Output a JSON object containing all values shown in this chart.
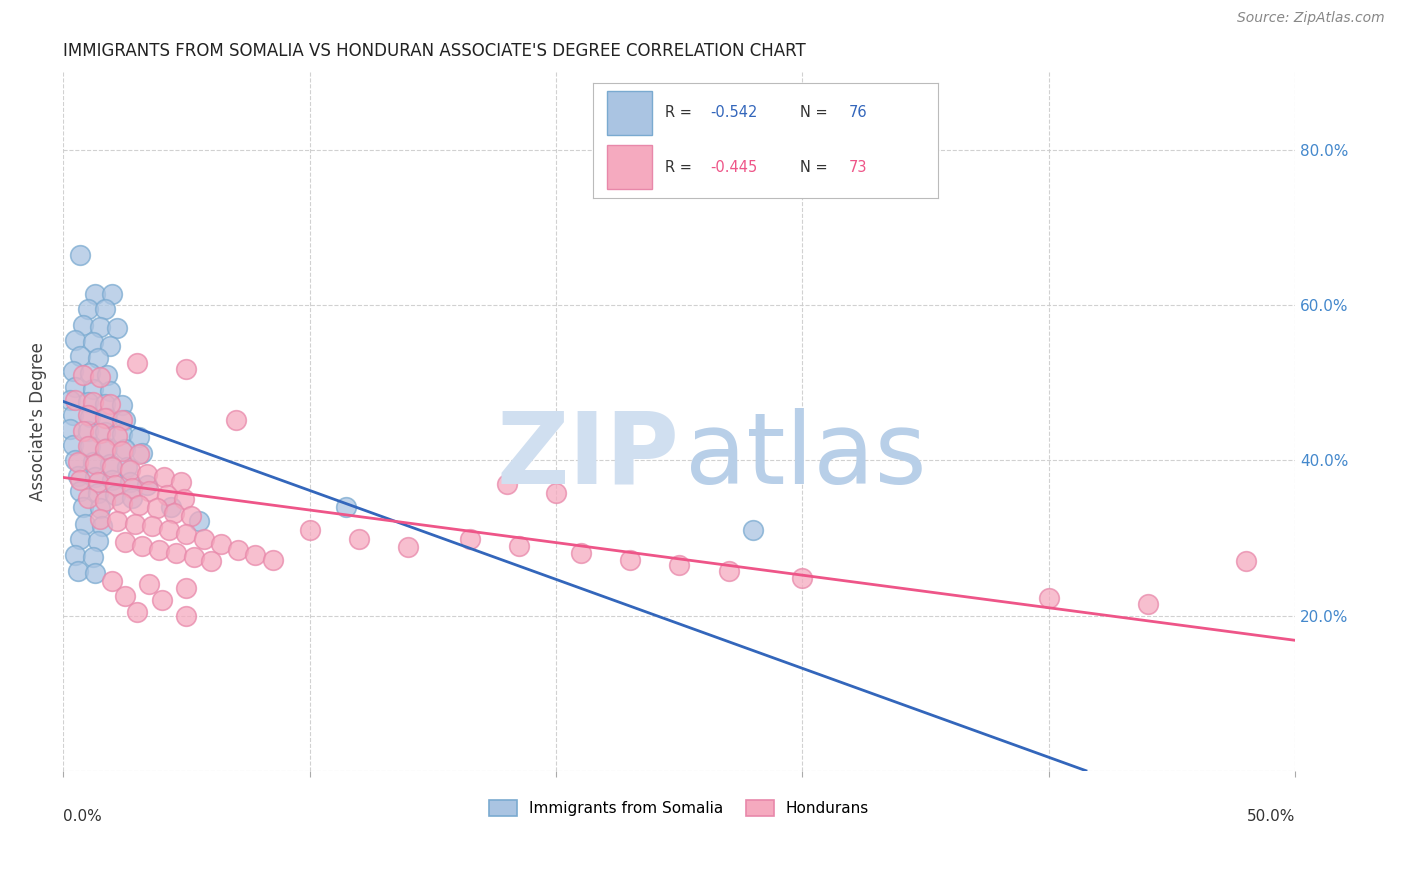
{
  "title": "IMMIGRANTS FROM SOMALIA VS HONDURAN ASSOCIATE'S DEGREE CORRELATION CHART",
  "source": "Source: ZipAtlas.com",
  "ylabel": "Associate's Degree",
  "right_yticks": [
    "20.0%",
    "40.0%",
    "60.0%",
    "80.0%"
  ],
  "right_ytick_vals": [
    0.2,
    0.4,
    0.6,
    0.8
  ],
  "xlim": [
    0.0,
    0.5
  ],
  "ylim": [
    0.0,
    0.9
  ],
  "blue_color": "#aac4e2",
  "pink_color": "#f5aabf",
  "blue_edge": "#7aaad0",
  "pink_edge": "#e888aa",
  "line_blue": "#3366bb",
  "line_pink": "#ee5588",
  "watermark_zip_color": "#d0dff0",
  "watermark_atlas_color": "#b8cfe8",
  "blue_line_x0": 0.0,
  "blue_line_y0": 0.476,
  "blue_line_x1": 0.415,
  "blue_line_y1": 0.0,
  "pink_line_x0": 0.0,
  "pink_line_y0": 0.378,
  "pink_line_x1": 0.5,
  "pink_line_y1": 0.168,
  "somalia_points": [
    [
      0.007,
      0.665
    ],
    [
      0.013,
      0.615
    ],
    [
      0.02,
      0.615
    ],
    [
      0.01,
      0.595
    ],
    [
      0.017,
      0.595
    ],
    [
      0.008,
      0.575
    ],
    [
      0.015,
      0.572
    ],
    [
      0.022,
      0.57
    ],
    [
      0.005,
      0.555
    ],
    [
      0.012,
      0.552
    ],
    [
      0.019,
      0.548
    ],
    [
      0.007,
      0.535
    ],
    [
      0.014,
      0.532
    ],
    [
      0.004,
      0.515
    ],
    [
      0.011,
      0.512
    ],
    [
      0.018,
      0.51
    ],
    [
      0.005,
      0.495
    ],
    [
      0.012,
      0.492
    ],
    [
      0.019,
      0.49
    ],
    [
      0.003,
      0.478
    ],
    [
      0.01,
      0.475
    ],
    [
      0.017,
      0.473
    ],
    [
      0.024,
      0.471
    ],
    [
      0.004,
      0.458
    ],
    [
      0.011,
      0.456
    ],
    [
      0.018,
      0.454
    ],
    [
      0.025,
      0.452
    ],
    [
      0.003,
      0.44
    ],
    [
      0.01,
      0.438
    ],
    [
      0.017,
      0.436
    ],
    [
      0.024,
      0.434
    ],
    [
      0.031,
      0.43
    ],
    [
      0.004,
      0.42
    ],
    [
      0.011,
      0.418
    ],
    [
      0.018,
      0.416
    ],
    [
      0.025,
      0.414
    ],
    [
      0.032,
      0.41
    ],
    [
      0.005,
      0.4
    ],
    [
      0.012,
      0.398
    ],
    [
      0.019,
      0.395
    ],
    [
      0.026,
      0.392
    ],
    [
      0.006,
      0.38
    ],
    [
      0.013,
      0.378
    ],
    [
      0.02,
      0.375
    ],
    [
      0.027,
      0.372
    ],
    [
      0.034,
      0.368
    ],
    [
      0.007,
      0.36
    ],
    [
      0.014,
      0.358
    ],
    [
      0.021,
      0.355
    ],
    [
      0.028,
      0.352
    ],
    [
      0.008,
      0.34
    ],
    [
      0.015,
      0.338
    ],
    [
      0.009,
      0.318
    ],
    [
      0.016,
      0.315
    ],
    [
      0.007,
      0.298
    ],
    [
      0.014,
      0.296
    ],
    [
      0.005,
      0.278
    ],
    [
      0.012,
      0.275
    ],
    [
      0.006,
      0.258
    ],
    [
      0.013,
      0.255
    ],
    [
      0.044,
      0.34
    ],
    [
      0.055,
      0.322
    ],
    [
      0.115,
      0.34
    ],
    [
      0.28,
      0.31
    ]
  ],
  "honduran_points": [
    [
      0.008,
      0.51
    ],
    [
      0.015,
      0.508
    ],
    [
      0.03,
      0.525
    ],
    [
      0.05,
      0.518
    ],
    [
      0.07,
      0.452
    ],
    [
      0.005,
      0.478
    ],
    [
      0.012,
      0.475
    ],
    [
      0.019,
      0.472
    ],
    [
      0.01,
      0.458
    ],
    [
      0.017,
      0.455
    ],
    [
      0.024,
      0.452
    ],
    [
      0.008,
      0.438
    ],
    [
      0.015,
      0.435
    ],
    [
      0.022,
      0.432
    ],
    [
      0.01,
      0.418
    ],
    [
      0.017,
      0.415
    ],
    [
      0.024,
      0.412
    ],
    [
      0.031,
      0.408
    ],
    [
      0.006,
      0.398
    ],
    [
      0.013,
      0.395
    ],
    [
      0.02,
      0.392
    ],
    [
      0.027,
      0.388
    ],
    [
      0.034,
      0.382
    ],
    [
      0.041,
      0.378
    ],
    [
      0.048,
      0.372
    ],
    [
      0.007,
      0.375
    ],
    [
      0.014,
      0.372
    ],
    [
      0.021,
      0.368
    ],
    [
      0.028,
      0.365
    ],
    [
      0.035,
      0.36
    ],
    [
      0.042,
      0.355
    ],
    [
      0.049,
      0.35
    ],
    [
      0.01,
      0.352
    ],
    [
      0.017,
      0.348
    ],
    [
      0.024,
      0.345
    ],
    [
      0.031,
      0.342
    ],
    [
      0.038,
      0.338
    ],
    [
      0.045,
      0.332
    ],
    [
      0.052,
      0.328
    ],
    [
      0.015,
      0.325
    ],
    [
      0.022,
      0.322
    ],
    [
      0.029,
      0.318
    ],
    [
      0.036,
      0.315
    ],
    [
      0.043,
      0.31
    ],
    [
      0.05,
      0.305
    ],
    [
      0.057,
      0.298
    ],
    [
      0.064,
      0.292
    ],
    [
      0.071,
      0.285
    ],
    [
      0.078,
      0.278
    ],
    [
      0.085,
      0.272
    ],
    [
      0.025,
      0.295
    ],
    [
      0.032,
      0.29
    ],
    [
      0.039,
      0.285
    ],
    [
      0.046,
      0.28
    ],
    [
      0.053,
      0.275
    ],
    [
      0.06,
      0.27
    ],
    [
      0.1,
      0.31
    ],
    [
      0.12,
      0.298
    ],
    [
      0.14,
      0.288
    ],
    [
      0.18,
      0.37
    ],
    [
      0.2,
      0.358
    ],
    [
      0.165,
      0.298
    ],
    [
      0.185,
      0.29
    ],
    [
      0.21,
      0.28
    ],
    [
      0.23,
      0.272
    ],
    [
      0.25,
      0.265
    ],
    [
      0.27,
      0.258
    ],
    [
      0.3,
      0.248
    ],
    [
      0.4,
      0.222
    ],
    [
      0.44,
      0.215
    ],
    [
      0.48,
      0.27
    ],
    [
      0.02,
      0.245
    ],
    [
      0.035,
      0.24
    ],
    [
      0.05,
      0.235
    ],
    [
      0.025,
      0.225
    ],
    [
      0.04,
      0.22
    ],
    [
      0.03,
      0.205
    ],
    [
      0.05,
      0.2
    ]
  ]
}
